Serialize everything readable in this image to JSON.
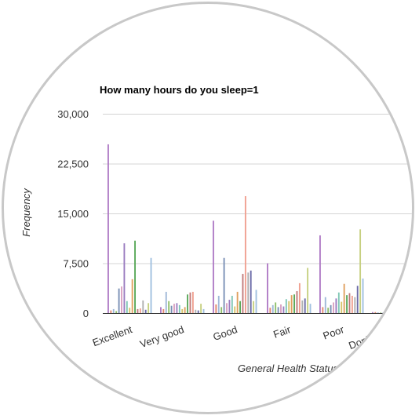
{
  "chart_data": {
    "type": "bar",
    "title": "How many hours do you sleep=1",
    "xlabel": "General Health Status",
    "ylabel": "Frequency",
    "ylim": [
      0,
      30000
    ],
    "yticks": [
      0,
      7500,
      15000,
      22500,
      30000
    ],
    "ytick_labels": [
      "0",
      "7,500",
      "15,000",
      "22,500",
      "30,000"
    ],
    "categories": [
      "Excellent",
      "Very good",
      "Good",
      "Fair",
      "Poor",
      "Don't know"
    ],
    "grid": true,
    "series": [
      {
        "color": "#b07cc6",
        "values": [
          25400,
          900,
          13900,
          7500,
          11700,
          150
        ]
      },
      {
        "color": "#e48870",
        "values": [
          400,
          600,
          1300,
          800,
          900,
          150
        ]
      },
      {
        "color": "#9fb8d8",
        "values": [
          600,
          3200,
          2600,
          1200,
          2400,
          100
        ]
      },
      {
        "color": "#8fbf6a",
        "values": [
          300,
          1800,
          900,
          1600,
          800,
          80
        ]
      },
      {
        "color": "#7a8fb5",
        "values": [
          3700,
          1100,
          8300,
          900,
          1200,
          100
        ]
      },
      {
        "color": "#d9a0c0",
        "values": [
          4000,
          1400,
          1500,
          1300,
          1600,
          120
        ]
      },
      {
        "color": "#9a7cc0",
        "values": [
          10500,
          1500,
          2000,
          1000,
          2200,
          100
        ]
      },
      {
        "color": "#7fc6b5",
        "values": [
          1800,
          1200,
          2600,
          2100,
          3100,
          110
        ]
      },
      {
        "color": "#d6c46a",
        "values": [
          800,
          600,
          1000,
          1800,
          1700,
          90
        ]
      },
      {
        "color": "#e0a060",
        "values": [
          5100,
          900,
          3200,
          2700,
          4400,
          120
        ]
      },
      {
        "color": "#5aa85a",
        "values": [
          10900,
          2800,
          1800,
          2800,
          2700,
          100
        ]
      },
      {
        "color": "#c07a7a",
        "values": [
          600,
          3100,
          5900,
          3300,
          3000,
          90
        ]
      },
      {
        "color": "#f0a090",
        "values": [
          700,
          3200,
          17600,
          4500,
          2600,
          100
        ]
      },
      {
        "color": "#b0b0b0",
        "values": [
          1900,
          500,
          6100,
          1900,
          2400,
          90
        ]
      },
      {
        "color": "#6a6aa8",
        "values": [
          500,
          400,
          6400,
          2200,
          4100,
          80
        ]
      },
      {
        "color": "#c6d080",
        "values": [
          1500,
          1400,
          1800,
          6800,
          12600,
          1000
        ]
      },
      {
        "color": "#a0c0e0",
        "values": [
          8300,
          600,
          3500,
          1400,
          5200,
          100
        ]
      }
    ]
  }
}
